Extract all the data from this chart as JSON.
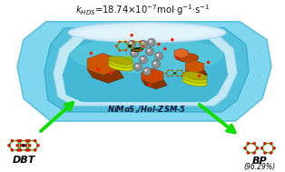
{
  "kinetics_text": "$k_{HDS}$=18.74×10$^{-7}$mol·g$^{-1}$·s$^{-1}$",
  "label_bottom": "NiMoS$_x$/Hol-ZSM-5",
  "label_left": "DBT",
  "label_right": "BP\n(96.29%)",
  "arrow_color": "#22DD00",
  "outer_shell_color": "#7FDDEE",
  "inner_cavity_color": "#55C8E0",
  "wall_color": "#C8EEF8",
  "rim_color": "#D8F2FA",
  "floor_color": "#60C8DC",
  "orange_color": "#CC5500",
  "dark_orange_color": "#AA4400",
  "silver_color": "#999999",
  "mos2_green": "#88BB00",
  "red_atom": "#EE2200",
  "green_ring": "#55AA00",
  "black_center": "#111111"
}
